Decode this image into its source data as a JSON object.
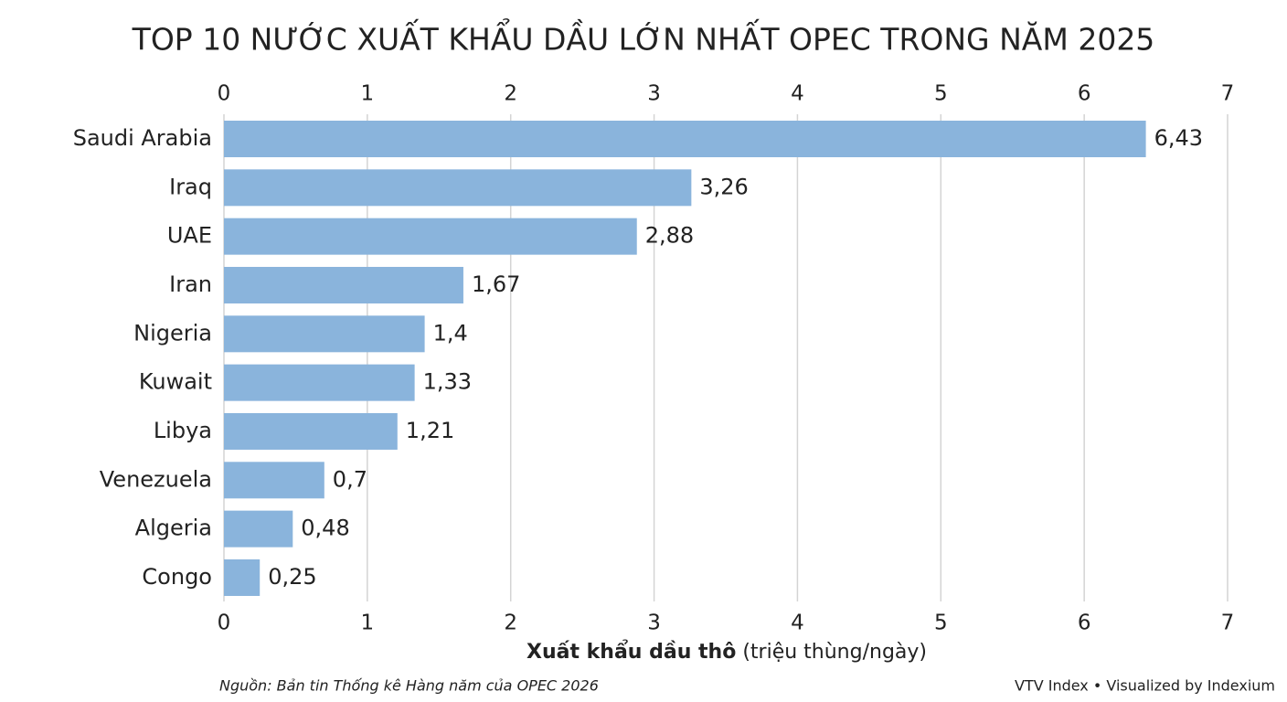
{
  "chart_data": {
    "type": "bar",
    "orientation": "horizontal",
    "title": "TOP 10 NƯỚC XUẤT KHẨU DẦU LỚN NHẤT OPEC TRONG NĂM 2025",
    "categories": [
      "Saudi Arabia",
      "Iraq",
      "UAE",
      "Iran",
      "Nigeria",
      "Kuwait",
      "Libya",
      "Venezuela",
      "Algeria",
      "Congo"
    ],
    "values": [
      6.43,
      3.26,
      2.88,
      1.67,
      1.4,
      1.33,
      1.21,
      0.7,
      0.48,
      0.25
    ],
    "value_labels": [
      "6,43",
      "3,26",
      "2,88",
      "1,67",
      "1,4",
      "1,33",
      "1,21",
      "0,7",
      "0,48",
      "0,25"
    ],
    "color": "#8ab4dc",
    "xlim": [
      0,
      7
    ],
    "xticks": [
      0,
      1,
      2,
      3,
      4,
      5,
      6,
      7
    ],
    "grid": true,
    "xlabel": "Xuất khẩu dầu thô",
    "xlabel_unit": "(triệu thùng/ngày)",
    "source": "Nguồn: Bản tin Thống kê Hàng năm của OPEC 2026",
    "credit": "VTV Index • Visualized by Indexium"
  }
}
